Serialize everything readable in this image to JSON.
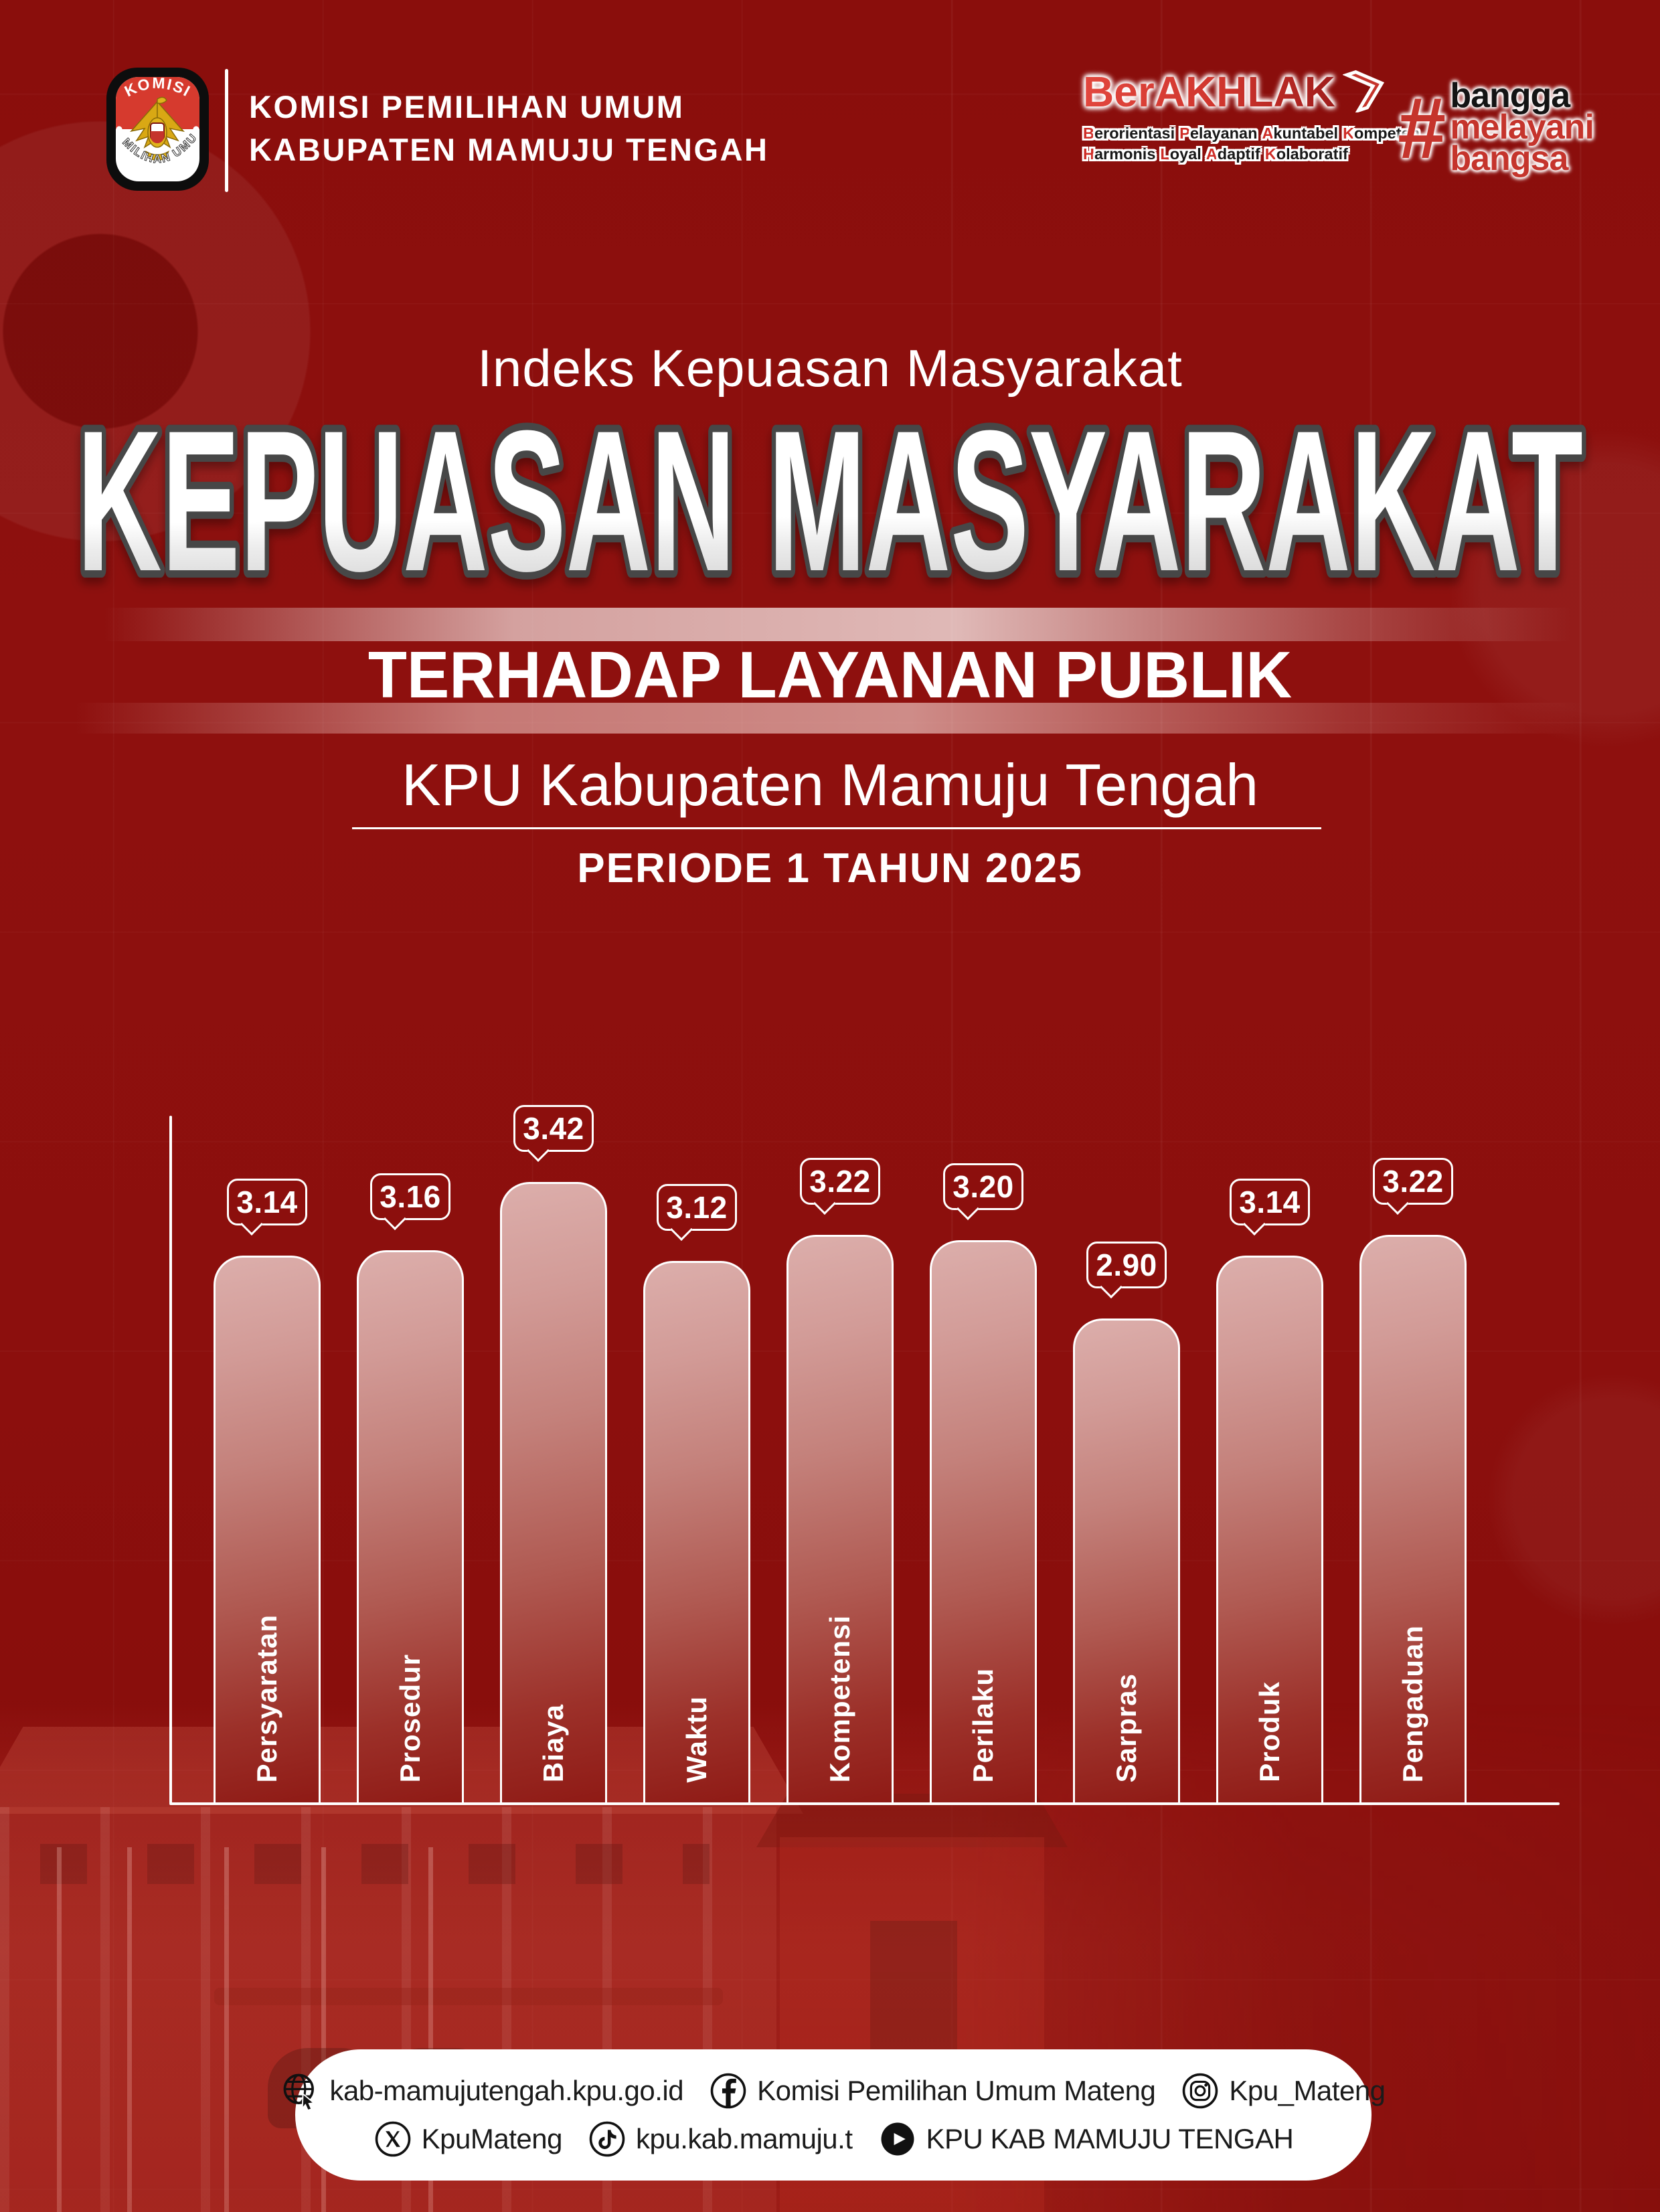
{
  "colors": {
    "background": "#8C0F0D",
    "accent_red": "#C5342C",
    "bar_gradient_top": "#DCAEAB",
    "bar_gradient_bottom": "#8F1A15",
    "title_outline": "#464646",
    "white": "#FFFFFF",
    "footer_text": "#1B1B1B"
  },
  "header": {
    "logo": {
      "arc_top": "KOMISI",
      "arc_bottom": "PEMILIHAN UMUM"
    },
    "org_line1": "KOMISI PEMILIHAN UMUM",
    "org_line2": "KABUPATEN MAMUJU TENGAH",
    "berakhlak": {
      "title": "BerAKHLAK",
      "tagline_line1": "Berorientasi Pelayanan Akuntabel Kompeten",
      "tagline_line2": "Harmonis Loyal Adaptif Kolaboratif"
    },
    "bangga": {
      "hash": "#",
      "line1": "bangga",
      "line2": "melayani",
      "line3": "bangsa"
    }
  },
  "title_block": {
    "kicker": "Indeks Kepuasan Masyarakat",
    "main_title": "KEPUASAN MASYARAKAT",
    "subtitle": "TERHADAP LAYANAN PUBLIK",
    "org_title": "KPU Kabupaten Mamuju Tengah",
    "periode": "PERIODE 1 TAHUN 2025"
  },
  "chart_data": {
    "type": "bar",
    "title": "Indeks Kepuasan Masyarakat terhadap Layanan Publik - KPU Kabupaten Mamuju Tengah - Periode 1 Tahun 2025",
    "categories": [
      "Persyaratan",
      "Prosedur",
      "Biaya",
      "Waktu",
      "Kompetensi",
      "Perilaku",
      "Sarpras",
      "Produk",
      "Pengaduan"
    ],
    "values": [
      3.14,
      3.16,
      3.42,
      3.12,
      3.22,
      3.2,
      2.9,
      3.14,
      3.22
    ],
    "value_label_format": "2dp",
    "xlabel": "",
    "ylabel": "",
    "ylim": [
      2.0,
      3.6
    ],
    "grid": "faint",
    "legend": "none",
    "bar_style": "rounded-top, pink-to-red gradient, white outline, value in speech-bubble above each bar, category label rotated vertically inside bar bottom"
  },
  "footer": {
    "items": [
      {
        "icon": "globe-icon",
        "label": "kab-mamujutengah.kpu.go.id"
      },
      {
        "icon": "facebook-icon",
        "label": "Komisi Pemilihan Umum Mateng"
      },
      {
        "icon": "instagram-icon",
        "label": "Kpu_Mateng"
      },
      {
        "icon": "x-icon",
        "label": "KpuMateng"
      },
      {
        "icon": "tiktok-icon",
        "label": "kpu.kab.mamuju.t"
      },
      {
        "icon": "youtube-icon",
        "label": "KPU KAB MAMUJU TENGAH"
      }
    ]
  }
}
